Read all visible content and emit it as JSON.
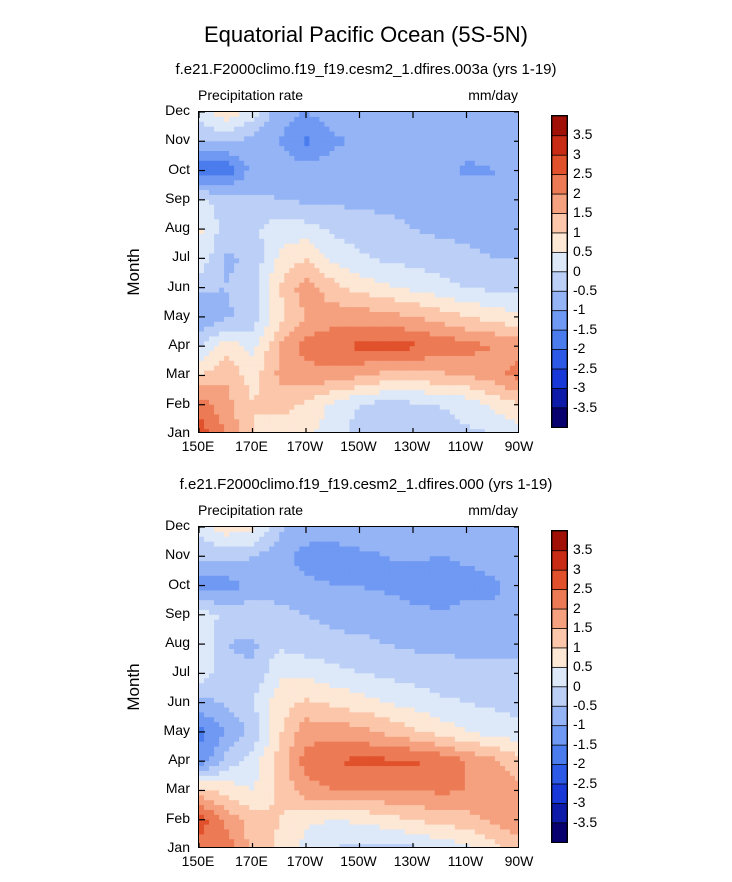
{
  "figure_title": "Equatorial Pacific Ocean (5S-5N)",
  "chart_data": [
    {
      "type": "heatmap",
      "title": "f.e21.F2000climo.f19_f19.cesm2_1.dfires.003a (yrs 1-19)",
      "left_label": "Precipitation rate",
      "right_label": "mm/day",
      "ylabel": "Month",
      "xlabel": "",
      "x_ticks": [
        "150E",
        "170E",
        "170W",
        "150W",
        "130W",
        "110W",
        "90W"
      ],
      "x_values": [
        150,
        170,
        190,
        210,
        230,
        250,
        270
      ],
      "xlim": [
        150,
        270
      ],
      "y_ticks": [
        "Jan",
        "Feb",
        "Mar",
        "Apr",
        "May",
        "Jun",
        "Jul",
        "Aug",
        "Sep",
        "Oct",
        "Nov",
        "Dec"
      ],
      "ylim": [
        1,
        12
      ],
      "z": [
        [
          2.8,
          2.0,
          1.0,
          0.7,
          0.6,
          0.2,
          -0.2,
          -0.4,
          -0.3,
          -0.2,
          -0.1,
          0.0,
          0.2
        ],
        [
          2.3,
          1.7,
          1.0,
          1.2,
          0.9,
          0.4,
          0.0,
          -0.2,
          -0.1,
          0.0,
          0.2,
          0.6,
          1.0
        ],
        [
          1.0,
          1.4,
          0.8,
          1.6,
          1.8,
          1.8,
          1.6,
          1.3,
          1.2,
          1.4,
          1.5,
          1.8,
          2.2
        ],
        [
          -0.1,
          0.8,
          0.3,
          1.5,
          2.2,
          2.4,
          2.6,
          2.7,
          2.6,
          2.4,
          2.2,
          2.0,
          1.8
        ],
        [
          -1.1,
          -0.6,
          -0.3,
          0.8,
          1.5,
          1.8,
          1.8,
          1.7,
          1.5,
          1.3,
          1.0,
          0.8,
          0.6
        ],
        [
          -0.4,
          -0.5,
          -0.2,
          1.0,
          1.8,
          1.2,
          0.8,
          0.6,
          0.4,
          0.2,
          0.0,
          -0.1,
          -0.2
        ],
        [
          0.4,
          -0.6,
          -0.4,
          0.6,
          1.0,
          0.4,
          0.1,
          -0.1,
          -0.2,
          -0.3,
          -0.4,
          -0.5,
          -0.5
        ],
        [
          0.6,
          -0.2,
          -0.1,
          0.3,
          0.2,
          -0.1,
          -0.3,
          -0.4,
          -0.5,
          -0.6,
          -0.6,
          -0.7,
          -0.7
        ],
        [
          0.2,
          -0.3,
          -0.4,
          -0.5,
          -0.6,
          -0.6,
          -0.6,
          -0.6,
          -0.6,
          -0.6,
          -0.7,
          -1.0,
          -0.9
        ],
        [
          -2.0,
          -1.9,
          -0.8,
          -0.7,
          -0.8,
          -0.7,
          -0.7,
          -0.6,
          -0.6,
          -0.8,
          -1.1,
          -1.0,
          -0.8
        ],
        [
          -0.5,
          -0.4,
          -0.7,
          -1.0,
          -1.6,
          -1.1,
          -0.9,
          -0.8,
          -0.7,
          -0.7,
          -0.8,
          -0.8,
          -0.7
        ],
        [
          0.2,
          0.9,
          0.3,
          -0.8,
          -1.0,
          -0.7,
          -0.6,
          -0.5,
          -0.6,
          -0.8,
          -0.8,
          -0.5,
          -0.5
        ]
      ]
    },
    {
      "type": "heatmap",
      "title": "f.e21.F2000climo.f19_f19.cesm2_1.dfires.000 (yrs 1-19)",
      "left_label": "Precipitation rate",
      "right_label": "mm/day",
      "ylabel": "Month",
      "xlabel": "",
      "x_ticks": [
        "150E",
        "170E",
        "170W",
        "150W",
        "130W",
        "110W",
        "90W"
      ],
      "x_values": [
        150,
        170,
        190,
        210,
        230,
        250,
        270
      ],
      "xlim": [
        150,
        270
      ],
      "y_ticks": [
        "Jan",
        "Feb",
        "Mar",
        "Apr",
        "May",
        "Jun",
        "Jul",
        "Aug",
        "Sep",
        "Oct",
        "Nov",
        "Dec"
      ],
      "ylim": [
        1,
        12
      ],
      "z": [
        [
          2.3,
          2.3,
          1.4,
          0.9,
          0.3,
          0.0,
          -0.2,
          -0.2,
          -0.1,
          0.1,
          0.4,
          0.8,
          1.2
        ],
        [
          2.8,
          1.9,
          1.2,
          1.0,
          0.6,
          0.5,
          0.6,
          0.8,
          1.0,
          1.2,
          1.3,
          1.6,
          2.0
        ],
        [
          1.2,
          0.8,
          0.5,
          1.1,
          1.8,
          2.0,
          2.0,
          2.0,
          2.0,
          2.1,
          2.0,
          1.9,
          1.6
        ],
        [
          -1.4,
          -0.3,
          0.2,
          1.2,
          2.2,
          2.5,
          2.6,
          2.6,
          2.6,
          2.4,
          2.0,
          1.6,
          1.2
        ],
        [
          -1.7,
          -1.0,
          -0.4,
          0.9,
          1.8,
          1.8,
          1.7,
          1.4,
          1.1,
          0.8,
          0.5,
          0.3,
          0.2
        ],
        [
          -0.7,
          -0.4,
          0.0,
          0.8,
          1.1,
          0.9,
          0.7,
          0.5,
          0.3,
          0.1,
          0.0,
          -0.1,
          -0.2
        ],
        [
          0.4,
          -0.4,
          -0.4,
          0.4,
          0.4,
          0.2,
          0.0,
          -0.1,
          -0.2,
          -0.3,
          -0.4,
          -0.4,
          -0.4
        ],
        [
          0.6,
          -0.5,
          -0.6,
          -0.1,
          -0.3,
          -0.4,
          -0.4,
          -0.5,
          -0.6,
          -0.6,
          -0.6,
          -0.6,
          -0.6
        ],
        [
          0.3,
          -0.1,
          -0.2,
          -0.3,
          -0.5,
          -0.6,
          -0.7,
          -0.7,
          -0.8,
          -0.9,
          -0.8,
          -0.9,
          -0.8
        ],
        [
          -1.2,
          -1.3,
          -0.8,
          -0.8,
          -0.9,
          -1.0,
          -1.0,
          -1.1,
          -1.3,
          -1.5,
          -1.2,
          -1.1,
          -0.8
        ],
        [
          -0.4,
          -0.3,
          -0.5,
          -0.8,
          -1.2,
          -1.2,
          -1.1,
          -1.0,
          -0.9,
          -1.0,
          -0.9,
          -0.8,
          -0.7
        ],
        [
          0.2,
          0.8,
          0.7,
          -0.4,
          -0.7,
          -0.8,
          -0.7,
          -0.6,
          -0.5,
          -0.6,
          -0.7,
          -0.6,
          -0.6
        ]
      ]
    }
  ],
  "colorbar": {
    "levels": [
      -3.5,
      -3,
      -2.5,
      -2,
      -1.5,
      -1,
      -0.5,
      0,
      0.5,
      1,
      1.5,
      2,
      2.5,
      3,
      3.5
    ],
    "labels": [
      "-3.5",
      "-3",
      "-2.5",
      "-2",
      "-1.5",
      "-1",
      "-0.5",
      "0",
      "0.5",
      "1",
      "1.5",
      "2",
      "2.5",
      "3",
      "3.5"
    ],
    "colors": [
      "#08006e",
      "#0d1ba8",
      "#1838d8",
      "#2c5ae6",
      "#4a7cee",
      "#6f99f2",
      "#95b4f5",
      "#bcd0f7",
      "#dde9f8",
      "#fde7d5",
      "#fbc6a9",
      "#f5a17f",
      "#ec7a54",
      "#e0512c",
      "#c92c14",
      "#a01006"
    ]
  }
}
